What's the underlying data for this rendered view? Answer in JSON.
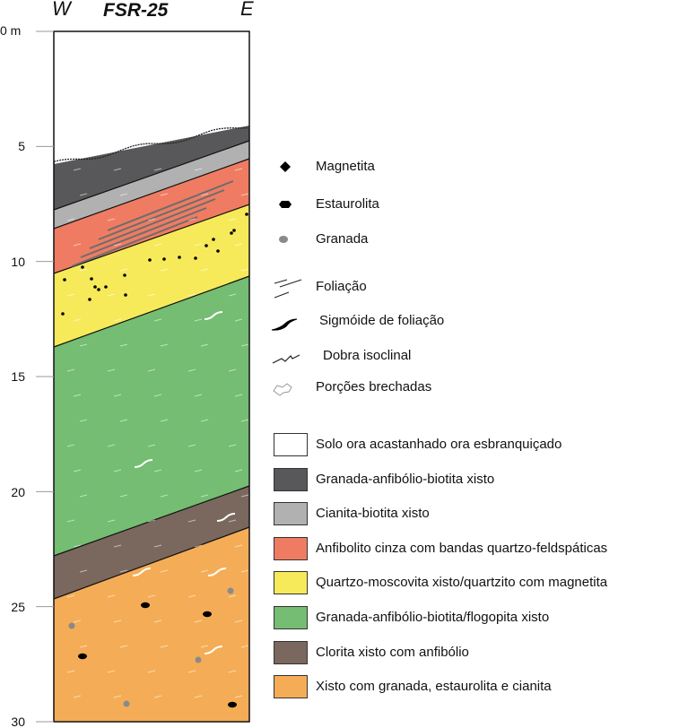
{
  "section": {
    "title": "FSR-25",
    "west": "W",
    "east": "E"
  },
  "depth_labels": [
    "0 m",
    "5",
    "10",
    "15",
    "20",
    "25",
    "30"
  ],
  "symbols": [
    {
      "icon": "magnetite-diamond-icon",
      "label": "Magnetita"
    },
    {
      "icon": "staurolite-hexagon-icon",
      "label": "Estaurolita"
    },
    {
      "icon": "garnet-dot-icon",
      "label": "Granada"
    },
    {
      "icon": "foliation-icon",
      "label": "Foliação"
    },
    {
      "icon": "foliation-sigmoid-icon",
      "label": "Sigmóide de foliação"
    },
    {
      "icon": "isoclinal-fold-icon",
      "label": "Dobra isoclinal"
    },
    {
      "icon": "brecciated-portion-icon",
      "label": "Porções brechadas"
    }
  ],
  "lithologies": [
    {
      "label": "Solo ora acastanhado ora esbranquiçado",
      "color": "#ffffff"
    },
    {
      "label": "Granada-anfibólio-biotita xisto",
      "color": "#58585a"
    },
    {
      "label": "Cianita-biotita xisto",
      "color": "#b1b1b1"
    },
    {
      "label": "Anfibolito cinza com bandas quartzo-feldspáticas",
      "color": "#ef7c62"
    },
    {
      "label": "Quartzo-moscovita xisto/quartzito com magnetita",
      "color": "#f6ea5a"
    },
    {
      "label": "Granada-anfibólio-biotita/flogopita xisto",
      "color": "#74bd72"
    },
    {
      "label": "Clorita xisto com anfibólio",
      "color": "#7a675e"
    },
    {
      "label": "Xisto com granada, estaurolita e cianita",
      "color": "#f4ad56"
    }
  ]
}
